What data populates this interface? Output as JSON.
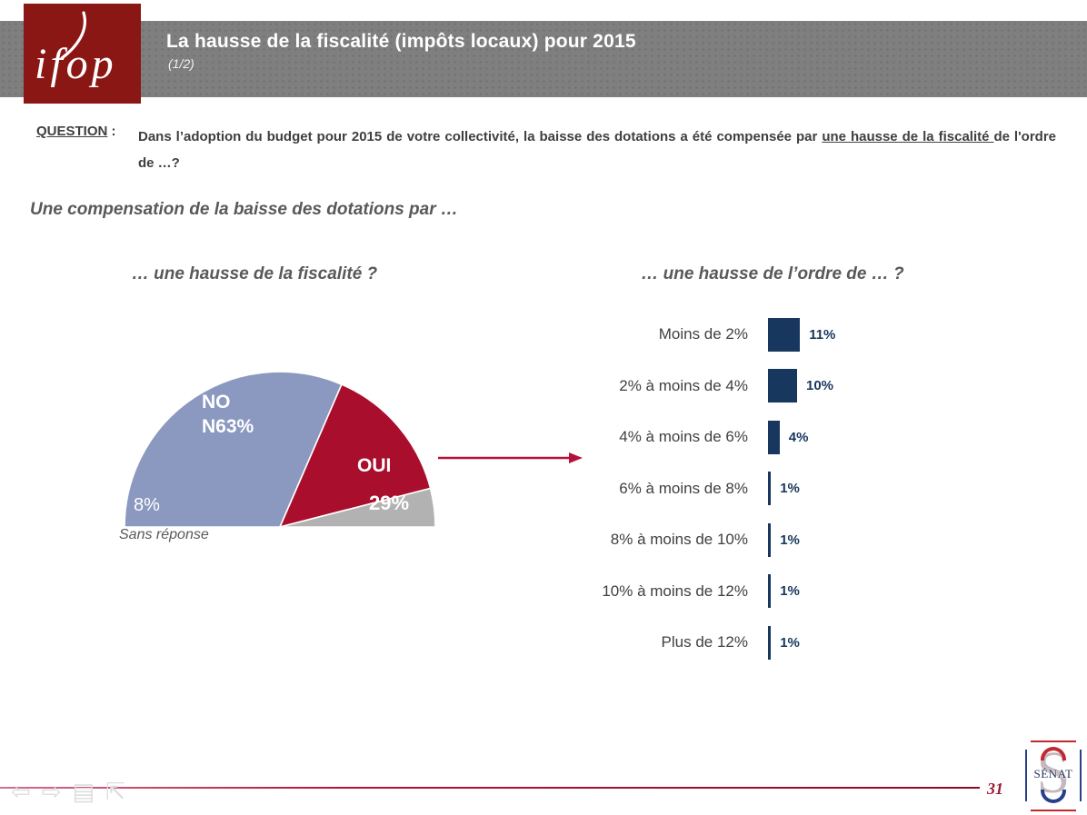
{
  "header": {
    "logo_text": "ifop",
    "title": "La hausse de la fiscalité (impôts locaux) pour 2015",
    "page_fraction": "(1/2)"
  },
  "question": {
    "label": "QUESTION",
    "colon": " :",
    "text_before": "Dans l’adoption du budget pour 2015 de votre collectivité, la baisse des dotations a été compensée par ",
    "text_underlined": "une hausse de la fiscalité ",
    "text_after": "de l'ordre de …?"
  },
  "intro_line": "Une compensation de la baisse des dotations par …",
  "chart_data": [
    {
      "type": "pie",
      "variant": "semi-circle",
      "title": "… une hausse de la fiscalité ?",
      "unit": "%",
      "slices": [
        {
          "label": "NON",
          "value": 63,
          "value_label": "63%",
          "display_lines": [
            "NO",
            "N63%"
          ],
          "color": "#8b99c0"
        },
        {
          "label": "OUI",
          "value": 29,
          "value_label": "29%",
          "color": "#a90f2d"
        },
        {
          "label": "Sans réponse",
          "value": 8,
          "value_label": "8%",
          "color": "#b2b2b2"
        }
      ]
    },
    {
      "type": "bar",
      "orientation": "horizontal",
      "title": "… une hausse de l’ordre de … ?",
      "categories": [
        "Moins de 2%",
        "2% à moins de 4%",
        "4% à moins de 6%",
        "6% à moins de 8%",
        "8% à moins de 10%",
        "10% à moins de 12%",
        "Plus de 12%"
      ],
      "values": [
        11,
        10,
        4,
        1,
        1,
        1,
        1
      ],
      "value_labels": [
        "11%",
        "10%",
        "4%",
        "1%",
        "1%",
        "1%",
        "1%"
      ],
      "bar_color": "#17375e",
      "xlim": [
        0,
        12
      ],
      "grid": false,
      "legend": false
    }
  ],
  "footer": {
    "page_number": "31",
    "senat": {
      "wordmark": "SÉNAT"
    },
    "nav_icons": {
      "prev": "⇦",
      "next": "⇨",
      "menu": "▤",
      "view": "⇱"
    }
  },
  "colors": {
    "accent_red": "#a90f2d",
    "navy": "#17375e",
    "header_gray": "#7f7f7f",
    "logo_red": "#8a1713",
    "text_gray": "#595959",
    "arrow_red": "#b5123a"
  }
}
